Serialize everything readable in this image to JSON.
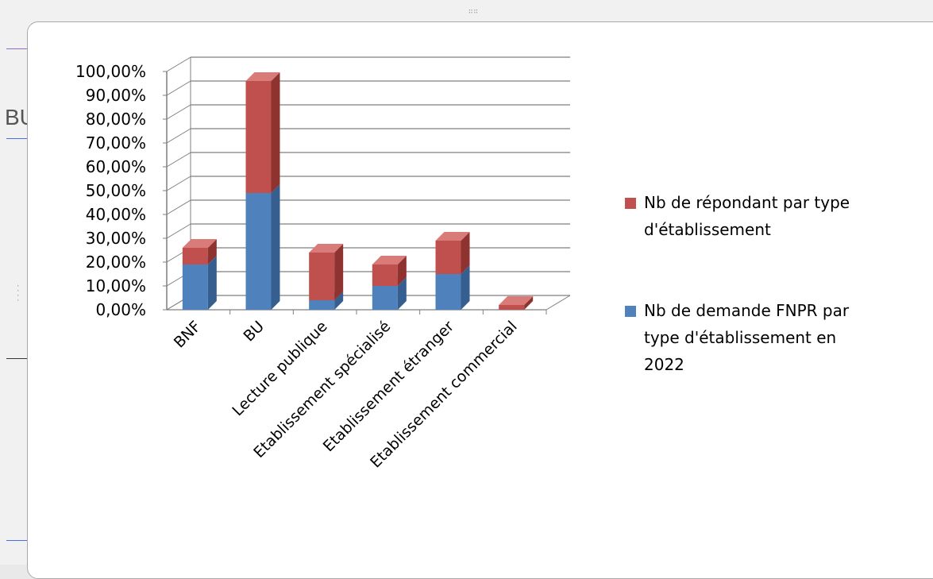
{
  "background_fragment": "BU",
  "colors": {
    "series_a": "#c0504d",
    "series_a_dark": "#8e3330",
    "series_a_top": "#d97b78",
    "series_b": "#4f81bd",
    "series_b_dark": "#365f8f",
    "series_b_top": "#7aa3d6",
    "gridline": "#7f7f7f"
  },
  "chart_data": {
    "type": "bar",
    "stacked": true,
    "three_d": true,
    "title": "",
    "xlabel": "",
    "ylabel": "",
    "ylim": [
      0,
      1.0
    ],
    "y_ticks": [
      "0,00%",
      "10,00%",
      "20,00%",
      "30,00%",
      "40,00%",
      "50,00%",
      "60,00%",
      "70,00%",
      "80,00%",
      "90,00%",
      "100,00%"
    ],
    "categories": [
      "BNF",
      "BU",
      "Lecture publique",
      "Etablissement spécialisé",
      "Etablissement étranger",
      "Etablissement commercial"
    ],
    "series": [
      {
        "name": "Nb de demande FNPR par type d'établissement en 2022",
        "legend_lines": [
          "Nb de demande FNPR par",
          "type d'établissement en",
          "2022"
        ],
        "values": [
          0.19,
          0.49,
          0.04,
          0.1,
          0.15,
          0.0
        ]
      },
      {
        "name": "Nb de répondant par type d'établissement",
        "legend_lines": [
          "Nb de répondant par type",
          "d'établissement"
        ],
        "values": [
          0.07,
          0.47,
          0.2,
          0.09,
          0.14,
          0.02
        ]
      }
    ],
    "legend_position": "right",
    "grid": true
  }
}
